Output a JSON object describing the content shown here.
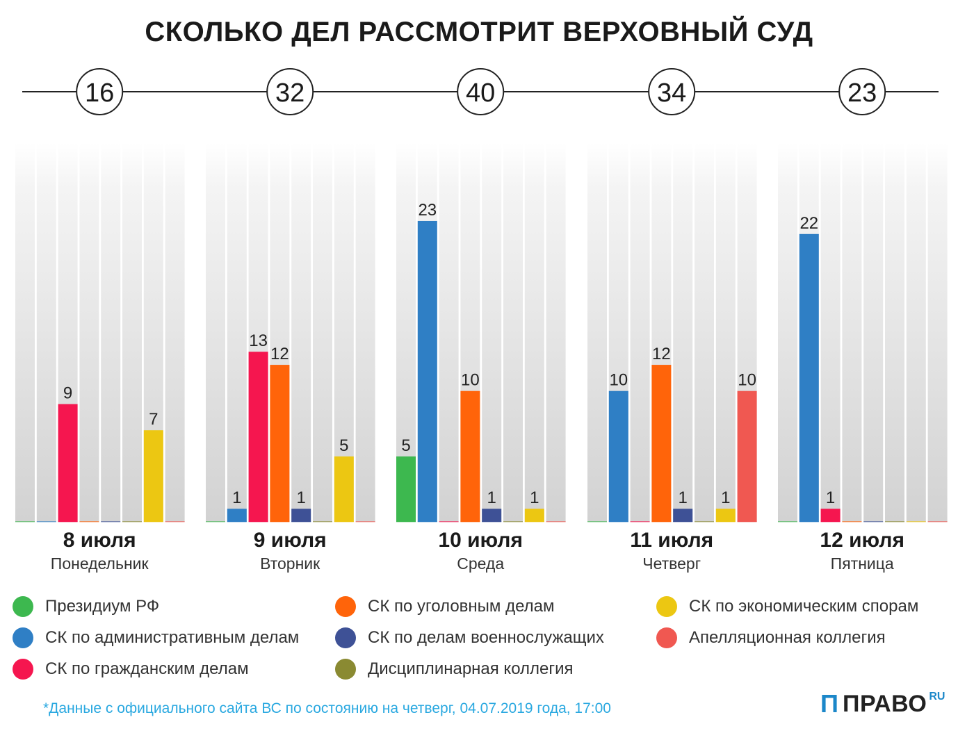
{
  "title": "СКОЛЬКО ДЕЛ РАССМОТРИТ ВЕРХОВНЫЙ СУД",
  "chart_data": {
    "type": "bar",
    "title": "СКОЛЬКО ДЕЛ РАССМОТРИТ ВЕРХОВНЫЙ СУД",
    "ylim": [
      0,
      29
    ],
    "legend_placement": "bottom",
    "series": [
      {
        "name": "Президиум РФ",
        "color": "#3db84f"
      },
      {
        "name": "СК по административным делам",
        "color": "#2f7fc5"
      },
      {
        "name": "СК по гражданским делам",
        "color": "#f5164f"
      },
      {
        "name": "СК по уголовным делам",
        "color": "#ff640a"
      },
      {
        "name": "СК по делам военнослужащих",
        "color": "#3e5196"
      },
      {
        "name": "Дисциплинарная коллегия",
        "color": "#8a8a32"
      },
      {
        "name": "СК по экономическим спорам",
        "color": "#ecc712"
      },
      {
        "name": "Апелляционная коллегия",
        "color": "#f05851"
      }
    ],
    "groups": [
      {
        "date": "8 июля",
        "day": "Понедельник",
        "total": "16",
        "values": [
          0,
          0,
          9,
          0,
          0,
          0,
          7,
          0
        ]
      },
      {
        "date": "9 июля",
        "day": "Вторник",
        "total": "32",
        "values": [
          0,
          1,
          13,
          12,
          1,
          0,
          5,
          0
        ]
      },
      {
        "date": "10 июля",
        "day": "Среда",
        "total": "40",
        "values": [
          5,
          23,
          0,
          10,
          1,
          0,
          1,
          0
        ]
      },
      {
        "date": "11 июля",
        "day": "Четверг",
        "total": "34",
        "values": [
          0,
          10,
          0,
          12,
          1,
          0,
          1,
          10
        ]
      },
      {
        "date": "12 июля",
        "day": "Пятница",
        "total": "23",
        "values": [
          0,
          22,
          1,
          0,
          0,
          0,
          0,
          0
        ]
      }
    ]
  },
  "legend": {
    "col1": [
      "Президиум РФ",
      "СК по административным делам",
      "СК по гражданским делам"
    ],
    "col2": [
      "СК по уголовным делам",
      "СК по делам военнослужащих",
      "Дисциплинарная коллегия"
    ],
    "col3": [
      "СК по экономическим спорам",
      "Апелляционная коллегия"
    ]
  },
  "footnote": "*Данные с официального сайта ВС по состоянию на четверг, 04.07.2019 года, 17:00",
  "logo": {
    "mark": "Π",
    "text": "ПРАВО",
    "sup": "RU"
  }
}
